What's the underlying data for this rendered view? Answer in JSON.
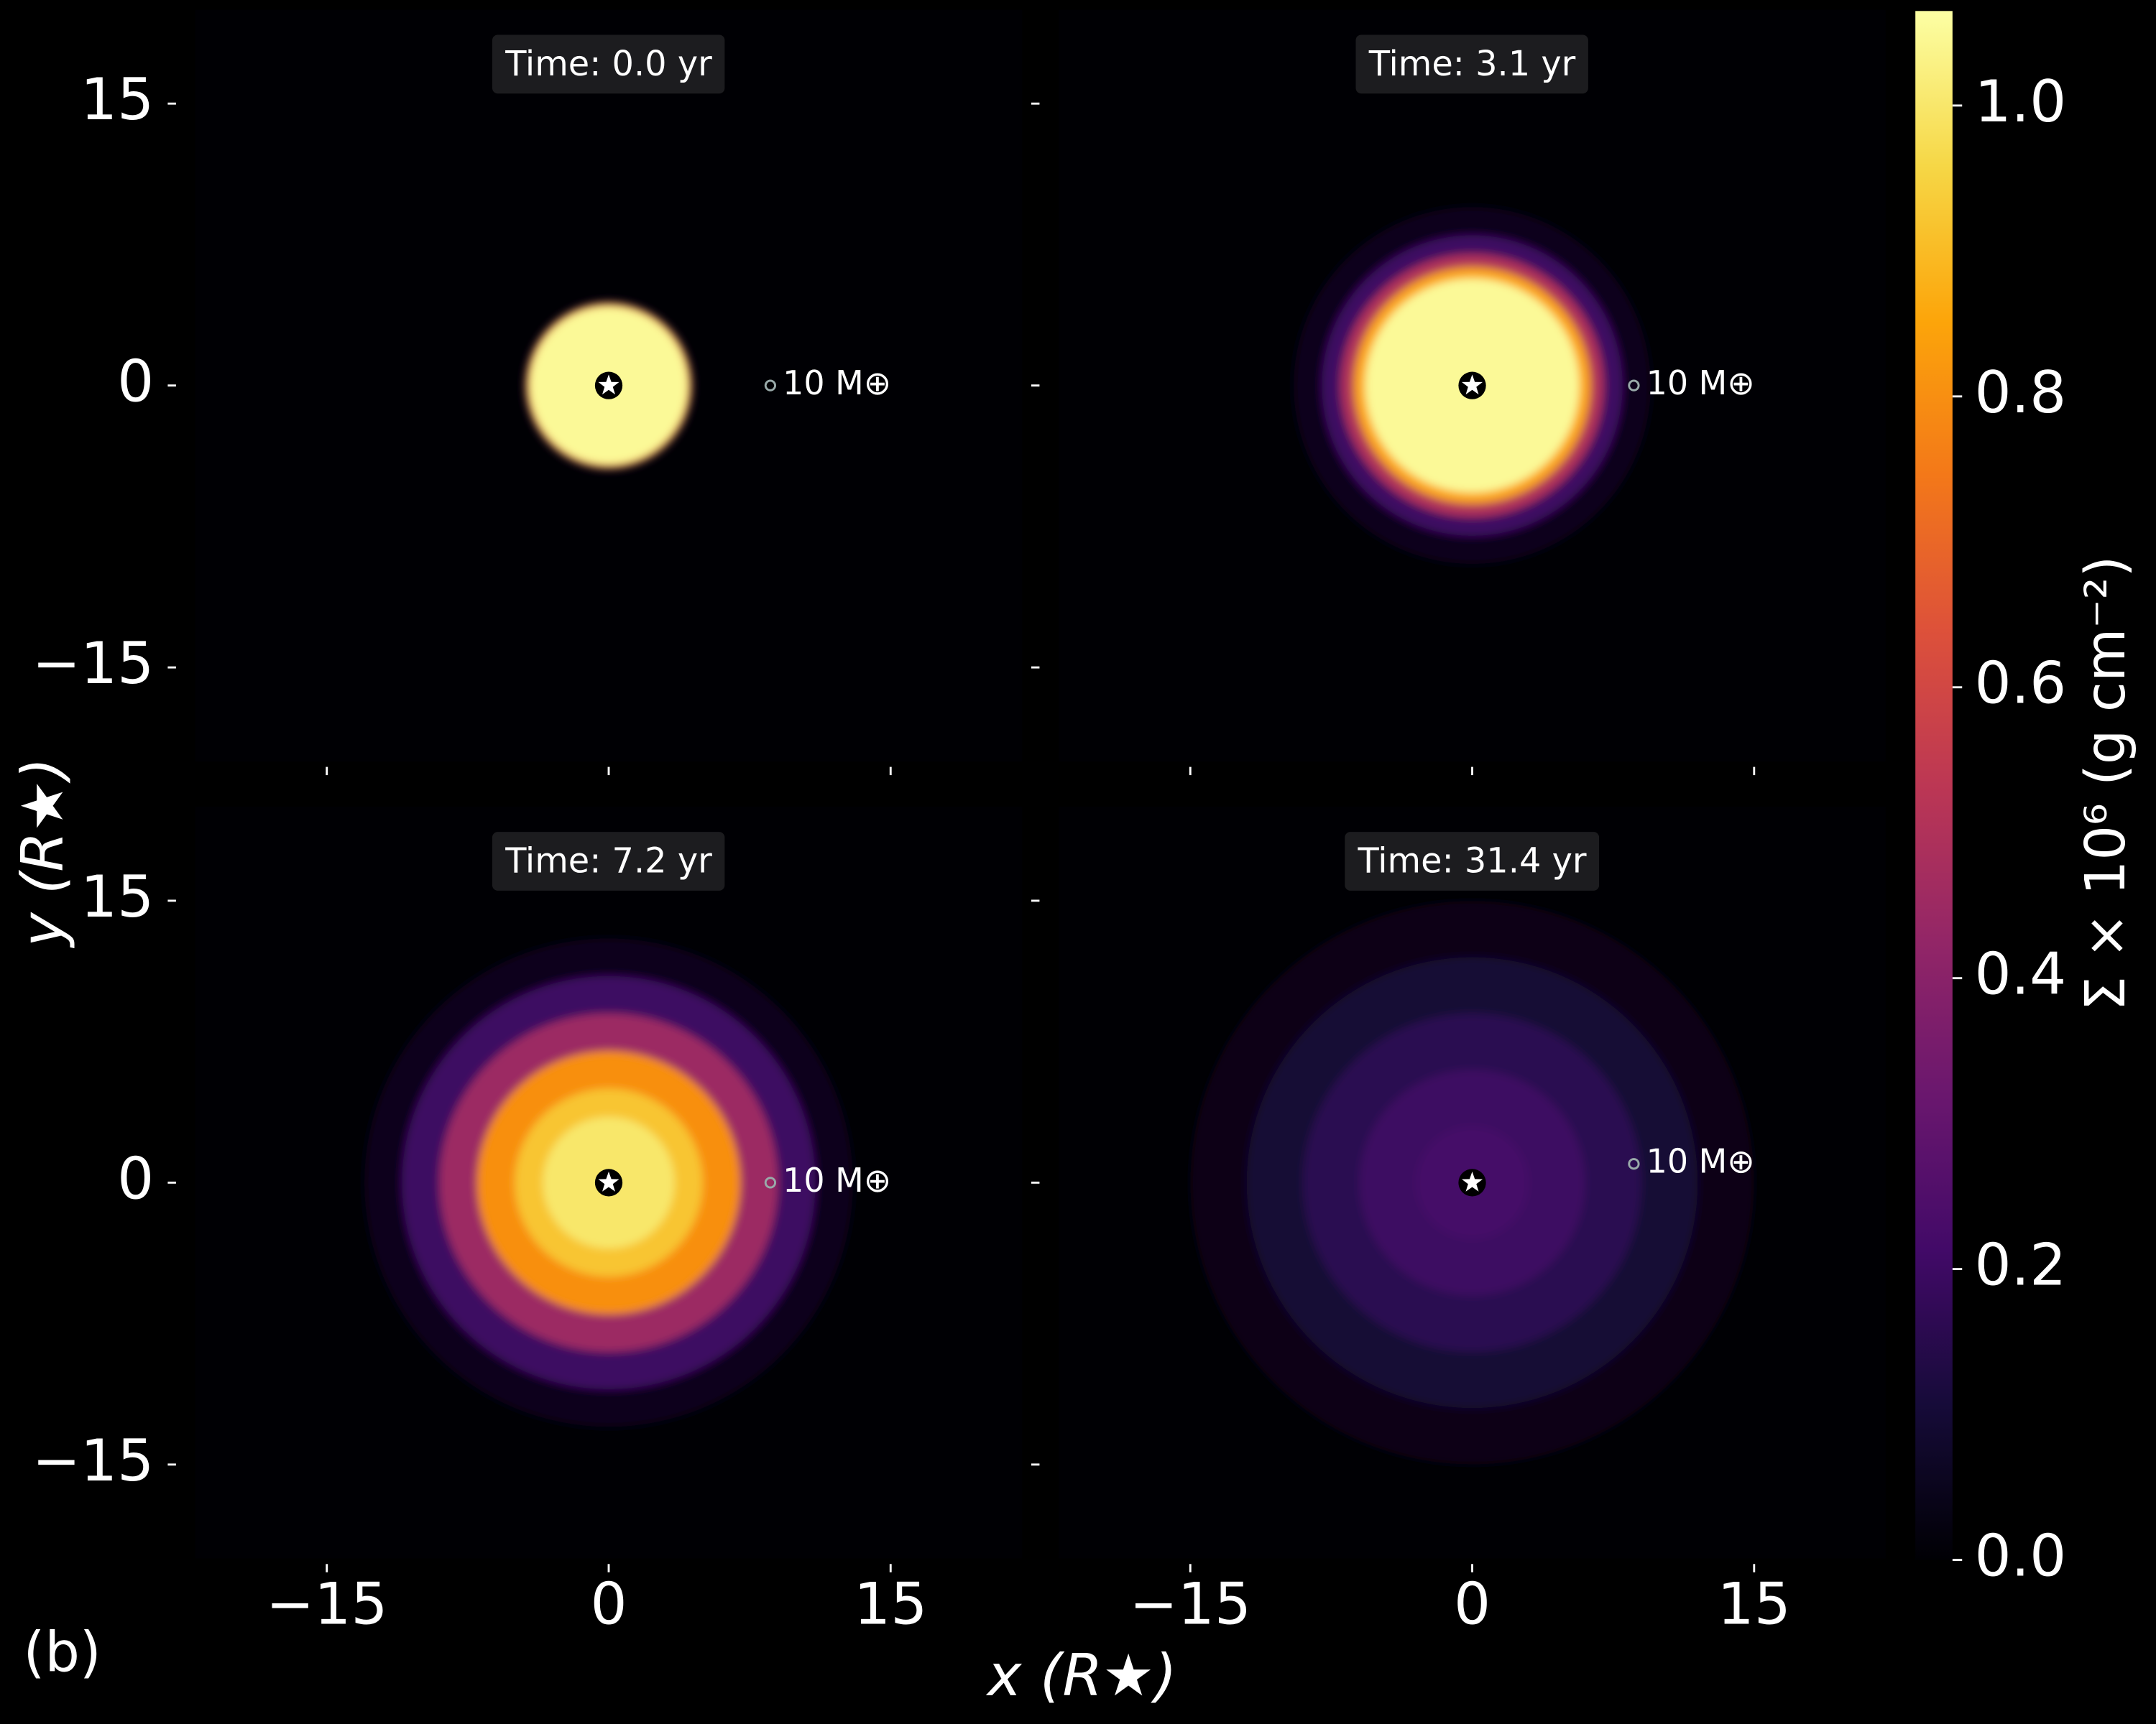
{
  "figure": {
    "label": "(b)",
    "xlabel": "x (R★)",
    "ylabel": "y (R★)"
  },
  "colorbar": {
    "label": "Σ × 10⁶ (g cm⁻²)",
    "clim": [
      0,
      1.065
    ],
    "ticks": [
      {
        "value": 0,
        "label": "0.0"
      },
      0.2,
      0.4,
      0.6,
      0.8,
      {
        "value": 1,
        "label": "1.0"
      }
    ]
  },
  "chart_data": [
    {
      "type": "density_map",
      "title": "Time: 0.0 yr",
      "xlim": [
        -22,
        22
      ],
      "ylim": [
        -20,
        20
      ],
      "xticks": [
        {
          "value": -15,
          "label": "−15"
        },
        0,
        15
      ],
      "yticks": [
        {
          "value": -15,
          "label": "−15"
        },
        0,
        15
      ],
      "profile": {
        "r": [
          4.5,
          4.35,
          4.2
        ],
        "sigma": [
          0.15,
          0.75,
          1.05
        ]
      },
      "star": {
        "x": 0,
        "y": 0
      },
      "planet": {
        "x": 8.6,
        "y": 0,
        "label": "10 M⊕"
      }
    },
    {
      "type": "density_map",
      "title": "Time: 3.1 yr",
      "xlim": [
        -22,
        22
      ],
      "ylim": [
        -20,
        20
      ],
      "xticks": [
        {
          "value": -15,
          "label": "−15"
        },
        0,
        15
      ],
      "yticks": [
        {
          "value": -15,
          "label": "−15"
        },
        0,
        15
      ],
      "profile": {
        "r": [
          9.5,
          8,
          7,
          6.3,
          5.7
        ],
        "sigma": [
          0.05,
          0.2,
          0.5,
          0.85,
          1.05
        ]
      },
      "star": {
        "x": 0,
        "y": 0
      },
      "planet": {
        "x": 8.6,
        "y": 0,
        "label": "10 M⊕"
      }
    },
    {
      "type": "density_map",
      "title": "Time: 7.2 yr",
      "xlim": [
        -22,
        22
      ],
      "ylim": [
        -20,
        20
      ],
      "xticks": [
        {
          "value": -15,
          "label": "−15"
        },
        0,
        15
      ],
      "yticks": [
        {
          "value": -15,
          "label": "−15"
        },
        0,
        15
      ],
      "profile": {
        "r": [
          13,
          11,
          9,
          7,
          5,
          3.5
        ],
        "sigma": [
          0.05,
          0.2,
          0.45,
          0.8,
          0.92,
          1.0
        ]
      },
      "star": {
        "x": 0,
        "y": 0
      },
      "planet": {
        "x": 8.6,
        "y": 0,
        "label": "10 M⊕"
      }
    },
    {
      "type": "density_map",
      "title": "Time: 31.4 yr",
      "xlim": [
        -22,
        22
      ],
      "ylim": [
        -20,
        20
      ],
      "xticks": [
        {
          "value": -15,
          "label": "−15"
        },
        0,
        15
      ],
      "yticks": [
        {
          "value": -15,
          "label": "−15"
        },
        0,
        15
      ],
      "profile": {
        "r": [
          15,
          12,
          9,
          6,
          3
        ],
        "sigma": [
          0.04,
          0.1,
          0.16,
          0.2,
          0.22
        ]
      },
      "star": {
        "x": 0,
        "y": 0
      },
      "planet": {
        "x": 8.6,
        "y": 1.0,
        "label": "10 M⊕"
      }
    }
  ]
}
